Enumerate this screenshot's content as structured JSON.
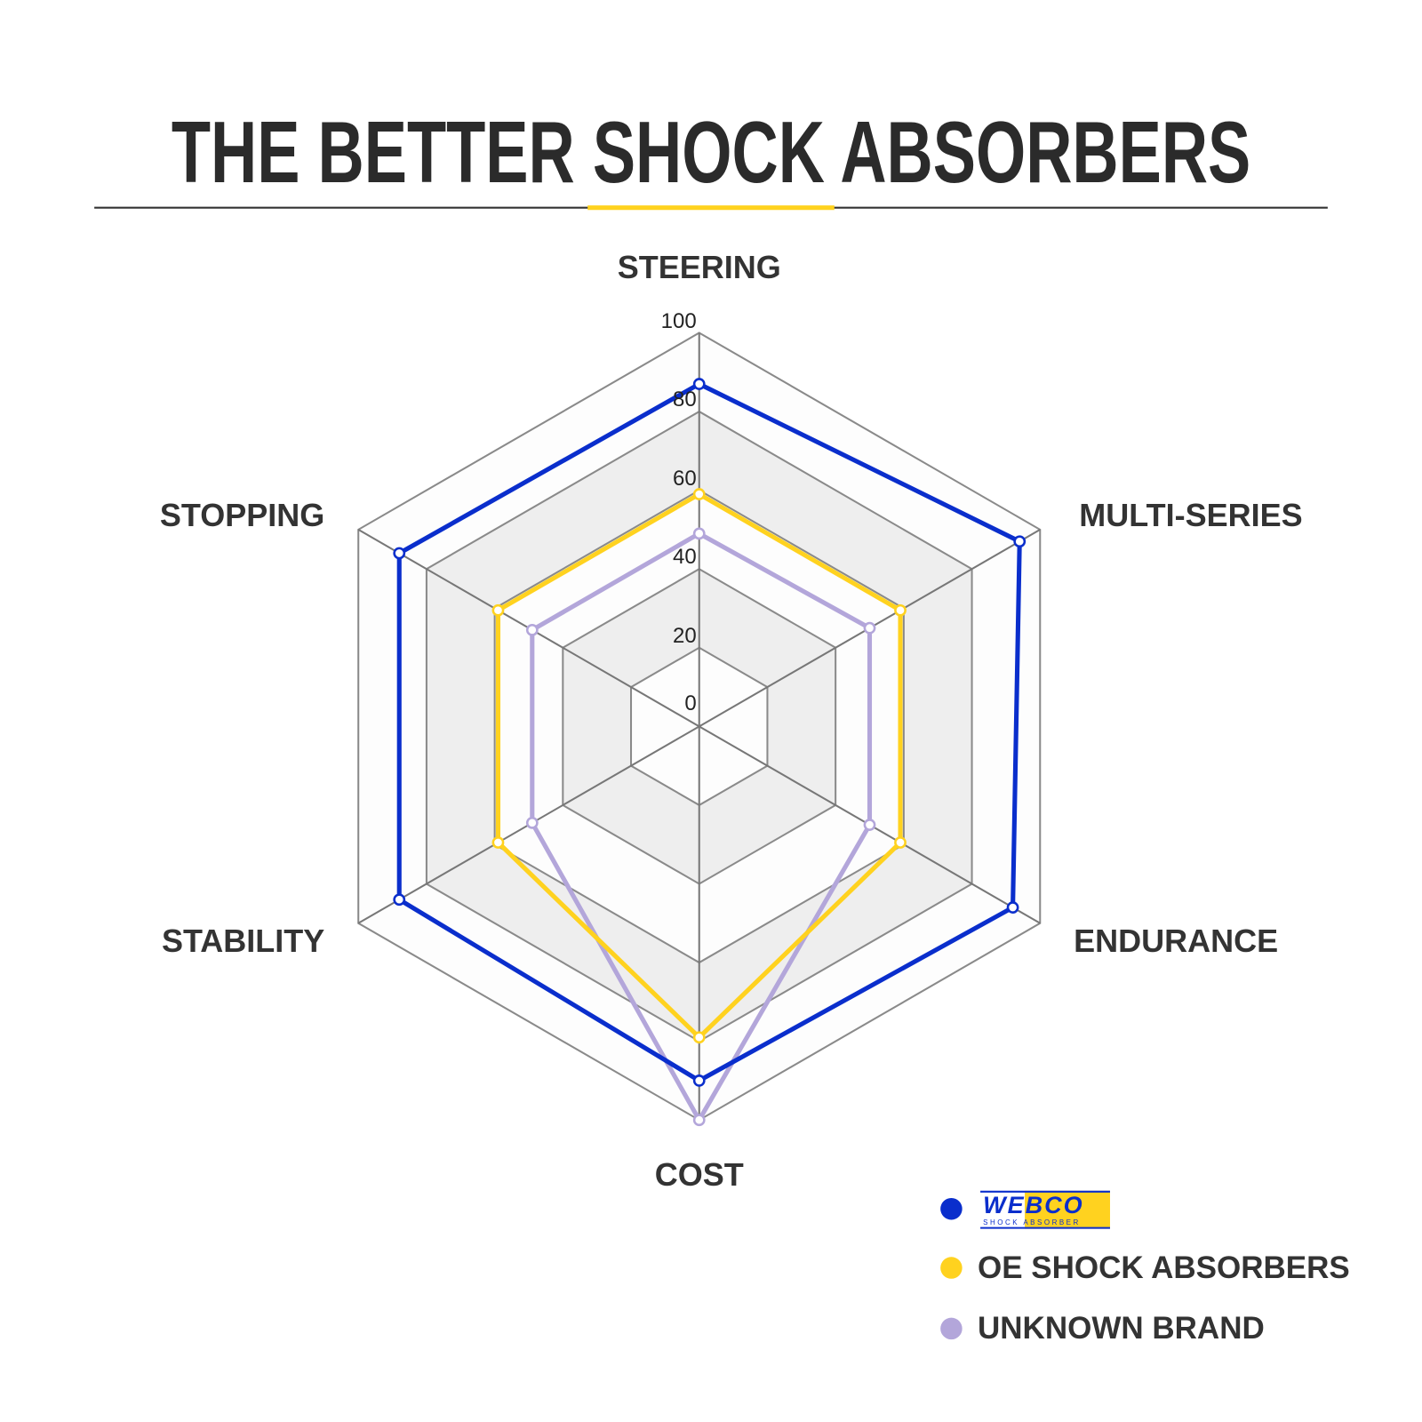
{
  "title": "THE BETTER SHOCK ABSORBERS",
  "colors": {
    "title_underline_accent": "#FFD21F",
    "rule": "#333333"
  },
  "chart_data": {
    "type": "radar",
    "categories": [
      "STEERING",
      "MULTI-SERIES",
      "ENDURANCE",
      "COST",
      "STABILITY",
      "STOPPING"
    ],
    "rlim": [
      0,
      100
    ],
    "ticks": [
      "0",
      "20",
      "40",
      "60",
      "80",
      "100"
    ],
    "grid": true,
    "legend_position": "bottom-right",
    "series": [
      {
        "name": "WEBCO",
        "logo_text": "WEBCO",
        "logo_subtext": "SHOCK ABSORBER",
        "color": "#0A2ECC",
        "values": [
          87,
          94,
          92,
          90,
          88,
          88
        ]
      },
      {
        "name": "OE SHOCK ABSORBERS",
        "color": "#FFD21F",
        "values": [
          59,
          59,
          59,
          79,
          59,
          59
        ]
      },
      {
        "name": "UNKNOWN BRAND",
        "color": "#B3A6DA",
        "values": [
          49,
          50,
          50,
          100,
          49,
          49
        ]
      }
    ]
  }
}
